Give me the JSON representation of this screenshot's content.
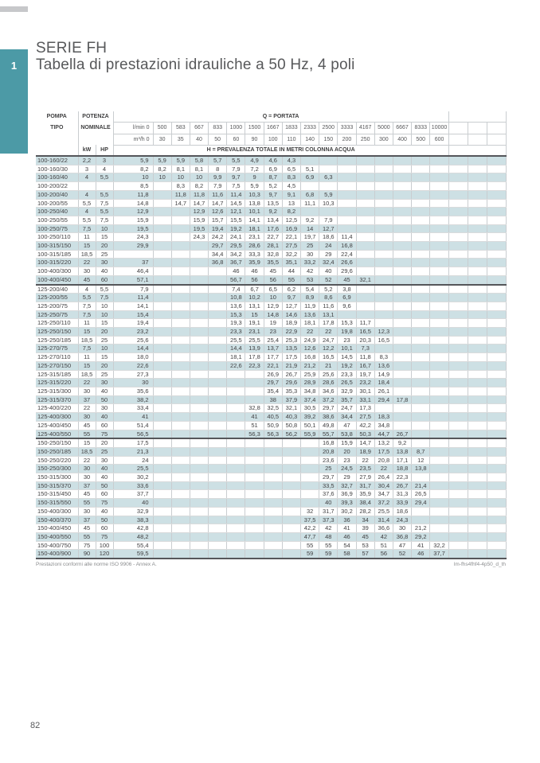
{
  "page": {
    "section_number": "1",
    "page_number": "82"
  },
  "title": {
    "line1": "SERIE FH",
    "line2": "Tabella di prestazioni idrauliche a 50 Hz, 4 poli"
  },
  "table": {
    "pompa_l1": "POMPA",
    "pompa_l2": "TIPO",
    "potenza_l1": "POTENZA",
    "potenza_l2": "NOMINALE",
    "kw_label": "kW",
    "hp_label": "HP",
    "q_header": "Q = PORTATA",
    "h_header": "H = PREVALENZA TOTALE IN METRI COLONNA ACQUA",
    "lmin_label": "l/min 0",
    "m3h_label": "m³/h 0",
    "lmin": [
      "500",
      "583",
      "667",
      "833",
      "1000",
      "1500",
      "1667",
      "1833",
      "2333",
      "2500",
      "3333",
      "4167",
      "5000",
      "6667",
      "8333",
      "10000"
    ],
    "m3h": [
      "30",
      "35",
      "40",
      "50",
      "60",
      "90",
      "100",
      "110",
      "140",
      "150",
      "200",
      "250",
      "300",
      "400",
      "500",
      "600"
    ],
    "group_breaks_after": [
      "100-400/450",
      "125-400/550"
    ],
    "rows": [
      {
        "type": "100-160/22",
        "kw": "2,2",
        "hp": "3",
        "values": [
          "5,9",
          "5,9",
          "5,9",
          "5,8",
          "5,7",
          "5,5",
          "4,9",
          "4,6",
          "4,3",
          "",
          "",
          "",
          "",
          "",
          "",
          "",
          ""
        ]
      },
      {
        "type": "100-160/30",
        "kw": "3",
        "hp": "4",
        "values": [
          "8,2",
          "8,2",
          "8,1",
          "8,1",
          "8",
          "7,9",
          "7,2",
          "6,9",
          "6,5",
          "5,1",
          "",
          "",
          "",
          "",
          "",
          "",
          ""
        ]
      },
      {
        "type": "100-160/40",
        "kw": "4",
        "hp": "5,5",
        "values": [
          "10",
          "10",
          "10",
          "10",
          "9,9",
          "9,7",
          "9",
          "8,7",
          "8,3",
          "6,9",
          "6,3",
          "",
          "",
          "",
          "",
          "",
          ""
        ]
      },
      {
        "type": "100-200/22",
        "kw": "",
        "hp": "",
        "values": [
          "8,5",
          "",
          "8,3",
          "8,2",
          "7,9",
          "7,5",
          "5,9",
          "5,2",
          "4,5",
          "",
          "",
          "",
          "",
          "",
          "",
          "",
          ""
        ]
      },
      {
        "type": "100-200/40",
        "kw": "4",
        "hp": "5,5",
        "values": [
          "11,8",
          "",
          "11,8",
          "11,8",
          "11,6",
          "11,4",
          "10,3",
          "9,7",
          "9,1",
          "6,8",
          "5,9",
          "",
          "",
          "",
          "",
          "",
          ""
        ]
      },
      {
        "type": "100-200/55",
        "kw": "5,5",
        "hp": "7,5",
        "values": [
          "14,8",
          "",
          "14,7",
          "14,7",
          "14,7",
          "14,5",
          "13,8",
          "13,5",
          "13",
          "11,1",
          "10,3",
          "",
          "",
          "",
          "",
          "",
          ""
        ]
      },
      {
        "type": "100-250/40",
        "kw": "4",
        "hp": "5,5",
        "values": [
          "12,9",
          "",
          "",
          "12,9",
          "12,6",
          "12,1",
          "10,1",
          "9,2",
          "8,2",
          "",
          "",
          "",
          "",
          "",
          "",
          "",
          ""
        ]
      },
      {
        "type": "100-250/55",
        "kw": "5,5",
        "hp": "7,5",
        "values": [
          "15,9",
          "",
          "",
          "15,9",
          "15,7",
          "15,5",
          "14,1",
          "13,4",
          "12,5",
          "9,2",
          "7,9",
          "",
          "",
          "",
          "",
          "",
          ""
        ]
      },
      {
        "type": "100-250/75",
        "kw": "7,5",
        "hp": "10",
        "values": [
          "19,5",
          "",
          "",
          "19,5",
          "19,4",
          "19,2",
          "18,1",
          "17,6",
          "16,9",
          "14",
          "12,7",
          "",
          "",
          "",
          "",
          "",
          ""
        ]
      },
      {
        "type": "100-250/110",
        "kw": "11",
        "hp": "15",
        "values": [
          "24,3",
          "",
          "",
          "24,3",
          "24,2",
          "24,1",
          "23,1",
          "22,7",
          "22,1",
          "19,7",
          "18,6",
          "11,4",
          "",
          "",
          "",
          "",
          ""
        ]
      },
      {
        "type": "100-315/150",
        "kw": "15",
        "hp": "20",
        "values": [
          "29,9",
          "",
          "",
          "",
          "29,7",
          "29,5",
          "28,6",
          "28,1",
          "27,5",
          "25",
          "24",
          "16,8",
          "",
          "",
          "",
          "",
          ""
        ]
      },
      {
        "type": "100-315/185",
        "kw": "18,5",
        "hp": "25",
        "values": [
          "",
          "",
          "",
          "",
          "34,4",
          "34,2",
          "33,3",
          "32,8",
          "32,2",
          "30",
          "29",
          "22,4",
          "",
          "",
          "",
          "",
          ""
        ]
      },
      {
        "type": "100-315/220",
        "kw": "22",
        "hp": "30",
        "values": [
          "37",
          "",
          "",
          "",
          "36,8",
          "36,7",
          "35,9",
          "35,5",
          "35,1",
          "33,2",
          "32,4",
          "26,6",
          "",
          "",
          "",
          "",
          ""
        ]
      },
      {
        "type": "100-400/300",
        "kw": "30",
        "hp": "40",
        "values": [
          "46,4",
          "",
          "",
          "",
          "",
          "46",
          "46",
          "45",
          "44",
          "42",
          "40",
          "29,6",
          "",
          "",
          "",
          "",
          ""
        ]
      },
      {
        "type": "100-400/450",
        "kw": "45",
        "hp": "60",
        "values": [
          "57,1",
          "",
          "",
          "",
          "",
          "56,7",
          "56",
          "56",
          "55",
          "53",
          "52",
          "45",
          "32,1",
          "",
          "",
          "",
          ""
        ]
      },
      {
        "type": "125-200/40",
        "kw": "4",
        "hp": "5,5",
        "values": [
          "7,9",
          "",
          "",
          "",
          "",
          "7,4",
          "6,7",
          "6,5",
          "6,2",
          "5,4",
          "5,2",
          "3,8",
          "",
          "",
          "",
          "",
          ""
        ]
      },
      {
        "type": "125-200/55",
        "kw": "5,5",
        "hp": "7,5",
        "values": [
          "11,4",
          "",
          "",
          "",
          "",
          "10,8",
          "10,2",
          "10",
          "9,7",
          "8,9",
          "8,6",
          "6,9",
          "",
          "",
          "",
          "",
          ""
        ]
      },
      {
        "type": "125-200/75",
        "kw": "7,5",
        "hp": "10",
        "values": [
          "14,1",
          "",
          "",
          "",
          "",
          "13,6",
          "13,1",
          "12,9",
          "12,7",
          "11,9",
          "11,6",
          "9,6",
          "",
          "",
          "",
          "",
          ""
        ]
      },
      {
        "type": "125-250/75",
        "kw": "7,5",
        "hp": "10",
        "values": [
          "15,4",
          "",
          "",
          "",
          "",
          "15,3",
          "15",
          "14,8",
          "14,6",
          "13,6",
          "13,1",
          "",
          "",
          "",
          "",
          "",
          ""
        ]
      },
      {
        "type": "125-250/110",
        "kw": "11",
        "hp": "15",
        "values": [
          "19,4",
          "",
          "",
          "",
          "",
          "19,3",
          "19,1",
          "19",
          "18,9",
          "18,1",
          "17,8",
          "15,3",
          "11,7",
          "",
          "",
          "",
          ""
        ]
      },
      {
        "type": "125-250/150",
        "kw": "15",
        "hp": "20",
        "values": [
          "23,2",
          "",
          "",
          "",
          "",
          "23,3",
          "23,1",
          "23",
          "22,9",
          "22",
          "22",
          "19,8",
          "16,5",
          "12,3",
          "",
          "",
          ""
        ]
      },
      {
        "type": "125-250/185",
        "kw": "18,5",
        "hp": "25",
        "values": [
          "25,6",
          "",
          "",
          "",
          "",
          "25,5",
          "25,5",
          "25,4",
          "25,3",
          "24,9",
          "24,7",
          "23",
          "20,3",
          "16,5",
          "",
          "",
          ""
        ]
      },
      {
        "type": "125-270/75",
        "kw": "7,5",
        "hp": "10",
        "values": [
          "14,4",
          "",
          "",
          "",
          "",
          "14,4",
          "13,9",
          "13,7",
          "13,5",
          "12,6",
          "12,2",
          "10,1",
          "7,3",
          "",
          "",
          "",
          ""
        ]
      },
      {
        "type": "125-270/110",
        "kw": "11",
        "hp": "15",
        "values": [
          "18,0",
          "",
          "",
          "",
          "",
          "18,1",
          "17,8",
          "17,7",
          "17,5",
          "16,8",
          "16,5",
          "14,5",
          "11,8",
          "8,3",
          "",
          "",
          ""
        ]
      },
      {
        "type": "125-270/150",
        "kw": "15",
        "hp": "20",
        "values": [
          "22,6",
          "",
          "",
          "",
          "",
          "22,6",
          "22,3",
          "22,1",
          "21,9",
          "21,2",
          "21",
          "19,2",
          "16,7",
          "13,6",
          "",
          "",
          ""
        ]
      },
      {
        "type": "125-315/185",
        "kw": "18,5",
        "hp": "25",
        "values": [
          "27,3",
          "",
          "",
          "",
          "",
          "",
          "",
          "26,9",
          "26,7",
          "25,9",
          "25,6",
          "23,3",
          "19,7",
          "14,9",
          "",
          "",
          ""
        ]
      },
      {
        "type": "125-315/220",
        "kw": "22",
        "hp": "30",
        "values": [
          "30",
          "",
          "",
          "",
          "",
          "",
          "",
          "29,7",
          "29,6",
          "28,9",
          "28,6",
          "26,5",
          "23,2",
          "18,4",
          "",
          "",
          ""
        ]
      },
      {
        "type": "125-315/300",
        "kw": "30",
        "hp": "40",
        "values": [
          "35,6",
          "",
          "",
          "",
          "",
          "",
          "",
          "35,4",
          "35,3",
          "34,8",
          "34,6",
          "32,9",
          "30,1",
          "26,1",
          "",
          "",
          ""
        ]
      },
      {
        "type": "125-315/370",
        "kw": "37",
        "hp": "50",
        "values": [
          "38,2",
          "",
          "",
          "",
          "",
          "",
          "",
          "38",
          "37,9",
          "37,4",
          "37,2",
          "35,7",
          "33,1",
          "29,4",
          "17,8",
          "",
          ""
        ]
      },
      {
        "type": "125-400/220",
        "kw": "22",
        "hp": "30",
        "values": [
          "33,4",
          "",
          "",
          "",
          "",
          "",
          "32,8",
          "32,5",
          "32,1",
          "30,5",
          "29,7",
          "24,7",
          "17,3",
          "",
          "",
          "",
          ""
        ]
      },
      {
        "type": "125-400/300",
        "kw": "30",
        "hp": "40",
        "values": [
          "41",
          "",
          "",
          "",
          "",
          "",
          "41",
          "40,5",
          "40,3",
          "39,2",
          "38,6",
          "34,4",
          "27,5",
          "18,3",
          "",
          "",
          ""
        ]
      },
      {
        "type": "125-400/450",
        "kw": "45",
        "hp": "60",
        "values": [
          "51,4",
          "",
          "",
          "",
          "",
          "",
          "51",
          "50,9",
          "50,8",
          "50,1",
          "49,8",
          "47",
          "42,2",
          "34,8",
          "",
          "",
          ""
        ]
      },
      {
        "type": "125-400/550",
        "kw": "55",
        "hp": "75",
        "values": [
          "56,5",
          "",
          "",
          "",
          "",
          "",
          "56,3",
          "56,3",
          "56,2",
          "55,9",
          "55,7",
          "53,8",
          "50,3",
          "44,7",
          "26,7",
          "",
          ""
        ]
      },
      {
        "type": "150-250/150",
        "kw": "15",
        "hp": "20",
        "values": [
          "17,5",
          "",
          "",
          "",
          "",
          "",
          "",
          "",
          "",
          "",
          "16,8",
          "15,9",
          "14,7",
          "13,2",
          "9,2",
          "",
          ""
        ]
      },
      {
        "type": "150-250/185",
        "kw": "18,5",
        "hp": "25",
        "values": [
          "21,3",
          "",
          "",
          "",
          "",
          "",
          "",
          "",
          "",
          "",
          "20,8",
          "20",
          "18,9",
          "17,5",
          "13,8",
          "8,7",
          ""
        ]
      },
      {
        "type": "150-250/220",
        "kw": "22",
        "hp": "30",
        "values": [
          "24",
          "",
          "",
          "",
          "",
          "",
          "",
          "",
          "",
          "",
          "23,6",
          "23",
          "22",
          "20,8",
          "17,1",
          "12",
          ""
        ]
      },
      {
        "type": "150-250/300",
        "kw": "30",
        "hp": "40",
        "values": [
          "25,5",
          "",
          "",
          "",
          "",
          "",
          "",
          "",
          "",
          "",
          "25",
          "24,5",
          "23,5",
          "22",
          "18,8",
          "13,8",
          ""
        ]
      },
      {
        "type": "150-315/300",
        "kw": "30",
        "hp": "40",
        "values": [
          "30,2",
          "",
          "",
          "",
          "",
          "",
          "",
          "",
          "",
          "",
          "29,7",
          "29",
          "27,9",
          "26,4",
          "22,3",
          "",
          ""
        ]
      },
      {
        "type": "150-315/370",
        "kw": "37",
        "hp": "50",
        "values": [
          "33,6",
          "",
          "",
          "",
          "",
          "",
          "",
          "",
          "",
          "",
          "33,5",
          "32,7",
          "31,7",
          "30,4",
          "26,7",
          "21,4",
          ""
        ]
      },
      {
        "type": "150-315/450",
        "kw": "45",
        "hp": "60",
        "values": [
          "37,7",
          "",
          "",
          "",
          "",
          "",
          "",
          "",
          "",
          "",
          "37,6",
          "36,9",
          "35,9",
          "34,7",
          "31,3",
          "26,5",
          ""
        ]
      },
      {
        "type": "150-315/550",
        "kw": "55",
        "hp": "75",
        "values": [
          "40",
          "",
          "",
          "",
          "",
          "",
          "",
          "",
          "",
          "",
          "40",
          "39,3",
          "38,4",
          "37,2",
          "33,9",
          "29,4",
          ""
        ]
      },
      {
        "type": "150-400/300",
        "kw": "30",
        "hp": "40",
        "values": [
          "32,9",
          "",
          "",
          "",
          "",
          "",
          "",
          "",
          "",
          "32",
          "31,7",
          "30,2",
          "28,2",
          "25,5",
          "18,6",
          "",
          ""
        ]
      },
      {
        "type": "150-400/370",
        "kw": "37",
        "hp": "50",
        "values": [
          "38,3",
          "",
          "",
          "",
          "",
          "",
          "",
          "",
          "",
          "37,5",
          "37,3",
          "36",
          "34",
          "31,4",
          "24,3",
          "",
          ""
        ]
      },
      {
        "type": "150-400/450",
        "kw": "45",
        "hp": "60",
        "values": [
          "42,8",
          "",
          "",
          "",
          "",
          "",
          "",
          "",
          "",
          "42,2",
          "42",
          "41",
          "39",
          "36,6",
          "30",
          "21,2",
          ""
        ]
      },
      {
        "type": "150-400/550",
        "kw": "55",
        "hp": "75",
        "values": [
          "48,2",
          "",
          "",
          "",
          "",
          "",
          "",
          "",
          "",
          "47,7",
          "48",
          "46",
          "45",
          "42",
          "36,8",
          "29,2",
          ""
        ]
      },
      {
        "type": "150-400/750",
        "kw": "75",
        "hp": "100",
        "values": [
          "55,4",
          "",
          "",
          "",
          "",
          "",
          "",
          "",
          "",
          "55",
          "55",
          "54",
          "53",
          "51",
          "47",
          "41",
          "32,2"
        ]
      },
      {
        "type": "150-400/900",
        "kw": "90",
        "hp": "120",
        "values": [
          "59,5",
          "",
          "",
          "",
          "",
          "",
          "",
          "",
          "",
          "59",
          "59",
          "58",
          "57",
          "56",
          "52",
          "46",
          "37,7"
        ]
      }
    ]
  },
  "footer": {
    "left": "Prestazioni conformi alle norme ISO 9906 - Annex A.",
    "right": "lm-fhs4fhf4-4p50_d_th"
  },
  "colors": {
    "accent_teal": "#4c9aa6",
    "row_band": "#cde0e4",
    "dark_rule": "#55565a"
  }
}
